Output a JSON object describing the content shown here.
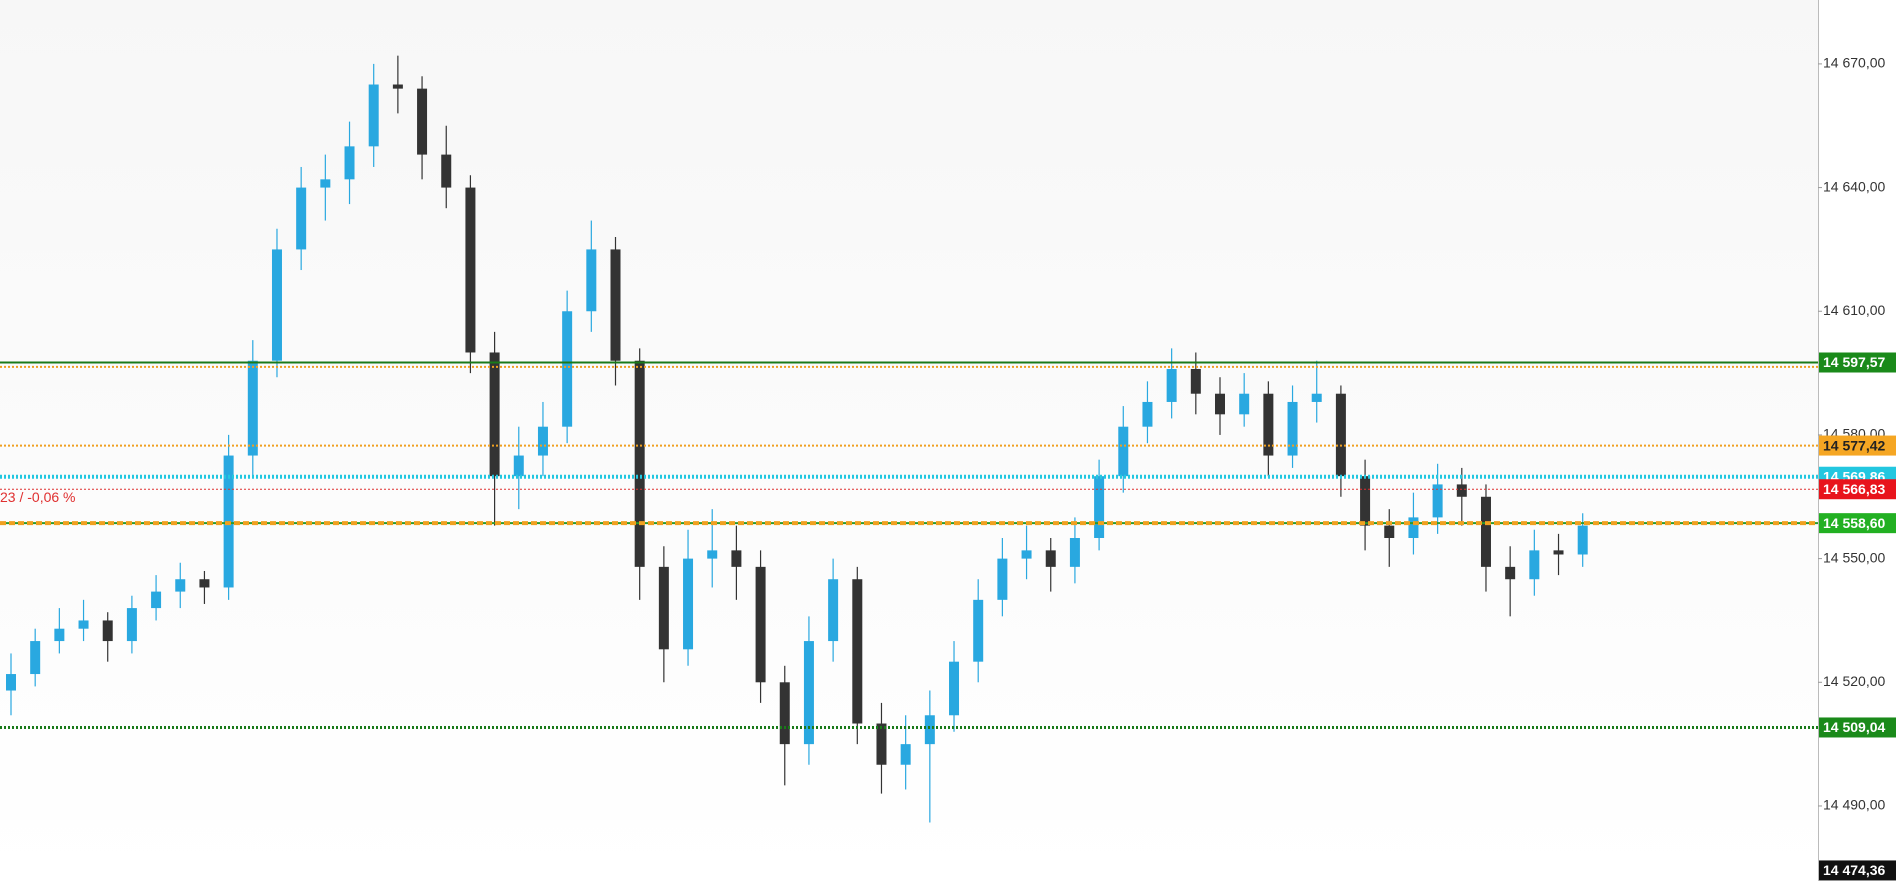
{
  "chart_data": {
    "type": "candlestick",
    "ylim": [
      14471.8,
      14685.5
    ],
    "yticks": [
      {
        "value": 14490,
        "label": "14 490,00"
      },
      {
        "value": 14520,
        "label": "14 520,00"
      },
      {
        "value": 14550,
        "label": "14 550,00"
      },
      {
        "value": 14580,
        "label": "14 580,00"
      },
      {
        "value": 14610,
        "label": "14 610,00"
      },
      {
        "value": 14640,
        "label": "14 640,00"
      },
      {
        "value": 14670,
        "label": "14 670,00"
      }
    ],
    "up_color": "#29a8e0",
    "down_color": "#333333",
    "candles": [
      [
        14518,
        14527,
        14512,
        14522
      ],
      [
        14522,
        14533,
        14519,
        14530
      ],
      [
        14530,
        14538,
        14527,
        14533
      ],
      [
        14533,
        14540,
        14530,
        14535
      ],
      [
        14535,
        14537,
        14525,
        14530
      ],
      [
        14530,
        14541,
        14527,
        14538
      ],
      [
        14538,
        14546,
        14535,
        14542
      ],
      [
        14542,
        14549,
        14538,
        14545
      ],
      [
        14545,
        14547,
        14539,
        14543
      ],
      [
        14543,
        14580,
        14540,
        14575
      ],
      [
        14575,
        14603,
        14570,
        14598
      ],
      [
        14598,
        14630,
        14594,
        14625
      ],
      [
        14625,
        14645,
        14620,
        14640
      ],
      [
        14640,
        14648,
        14632,
        14642
      ],
      [
        14642,
        14656,
        14636,
        14650
      ],
      [
        14650,
        14670,
        14645,
        14665
      ],
      [
        14665,
        14672,
        14658,
        14664
      ],
      [
        14664,
        14667,
        14642,
        14648
      ],
      [
        14648,
        14655,
        14635,
        14640
      ],
      [
        14640,
        14643,
        14595,
        14600
      ],
      [
        14600,
        14605,
        14558,
        14570
      ],
      [
        14570,
        14582,
        14562,
        14575
      ],
      [
        14575,
        14588,
        14570,
        14582
      ],
      [
        14582,
        14615,
        14578,
        14610
      ],
      [
        14610,
        14632,
        14605,
        14625
      ],
      [
        14625,
        14628,
        14592,
        14598
      ],
      [
        14598,
        14601,
        14540,
        14548
      ],
      [
        14548,
        14553,
        14520,
        14528
      ],
      [
        14528,
        14557,
        14524,
        14550
      ],
      [
        14550,
        14562,
        14543,
        14552
      ],
      [
        14552,
        14558,
        14540,
        14548
      ],
      [
        14548,
        14552,
        14515,
        14520
      ],
      [
        14520,
        14524,
        14495,
        14505
      ],
      [
        14505,
        14536,
        14500,
        14530
      ],
      [
        14530,
        14550,
        14525,
        14545
      ],
      [
        14545,
        14548,
        14505,
        14510
      ],
      [
        14510,
        14515,
        14493,
        14500
      ],
      [
        14500,
        14512,
        14494,
        14505
      ],
      [
        14505,
        14518,
        14486,
        14512
      ],
      [
        14512,
        14530,
        14508,
        14525
      ],
      [
        14525,
        14545,
        14520,
        14540
      ],
      [
        14540,
        14555,
        14536,
        14550
      ],
      [
        14550,
        14558,
        14545,
        14552
      ],
      [
        14552,
        14555,
        14542,
        14548
      ],
      [
        14548,
        14560,
        14544,
        14555
      ],
      [
        14555,
        14574,
        14552,
        14570
      ],
      [
        14570,
        14587,
        14566,
        14582
      ],
      [
        14582,
        14593,
        14578,
        14588
      ],
      [
        14588,
        14601,
        14584,
        14596
      ],
      [
        14596,
        14600,
        14585,
        14590
      ],
      [
        14590,
        14594,
        14580,
        14585
      ],
      [
        14585,
        14595,
        14582,
        14590
      ],
      [
        14590,
        14593,
        14570,
        14575
      ],
      [
        14575,
        14592,
        14572,
        14588
      ],
      [
        14588,
        14598,
        14583,
        14590
      ],
      [
        14590,
        14592,
        14565,
        14570
      ],
      [
        14570,
        14574,
        14552,
        14558
      ],
      [
        14558,
        14562,
        14548,
        14555
      ],
      [
        14555,
        14566,
        14551,
        14560
      ],
      [
        14560,
        14573,
        14556,
        14568
      ],
      [
        14568,
        14572,
        14558,
        14565
      ],
      [
        14565,
        14568,
        14542,
        14548
      ],
      [
        14548,
        14553,
        14536,
        14545
      ],
      [
        14545,
        14557,
        14541,
        14552
      ],
      [
        14552,
        14556,
        14546,
        14551
      ],
      [
        14551,
        14561,
        14548,
        14558
      ]
    ],
    "levels": [
      {
        "value": 14569.86,
        "color": "#22c7e0",
        "style": "dotted",
        "width": 4,
        "label": "14 569,86",
        "label_bg": "#22c7e0",
        "label_color": "#ffffff"
      },
      {
        "value": 14596.5,
        "color": "#f0a020",
        "style": "dotted",
        "width": 2
      },
      {
        "value": 14597.57,
        "color": "#1a7a1a",
        "style": "solid",
        "width": 2,
        "label": "14 597,57",
        "label_bg": "#1a8a1a",
        "label_color": "#ffffff"
      },
      {
        "value": 14577.42,
        "color": "#f0a020",
        "style": "dotted",
        "width": 2,
        "label": "14 577,42",
        "label_bg": "#f5a623",
        "label_color": "#222222"
      },
      {
        "value": 14566.83,
        "color": "#e03030",
        "style": "dotted",
        "width": 1,
        "label": "14 566,83",
        "label_bg": "#e8141c",
        "label_color": "#ffffff"
      },
      {
        "value": 14558.6,
        "color": "#2a9a2a",
        "style": "solid",
        "width": 2,
        "label": "14 558,60",
        "label_bg": "#22b022",
        "label_color": "#ffffff"
      },
      {
        "value": 14558.6,
        "color": "#f0a020",
        "style": "dashed",
        "width": 4
      },
      {
        "value": 14509.04,
        "color": "#1a7a1a",
        "style": "dotted",
        "width": 3,
        "label": "14 509,04",
        "label_bg": "#1a8a1a",
        "label_color": "#ffffff"
      }
    ],
    "annotation": "23 / -0,06 %",
    "annotation_level": 14566.83,
    "cursor_label": {
      "value": 14474.36,
      "label": "14 474,36"
    }
  }
}
